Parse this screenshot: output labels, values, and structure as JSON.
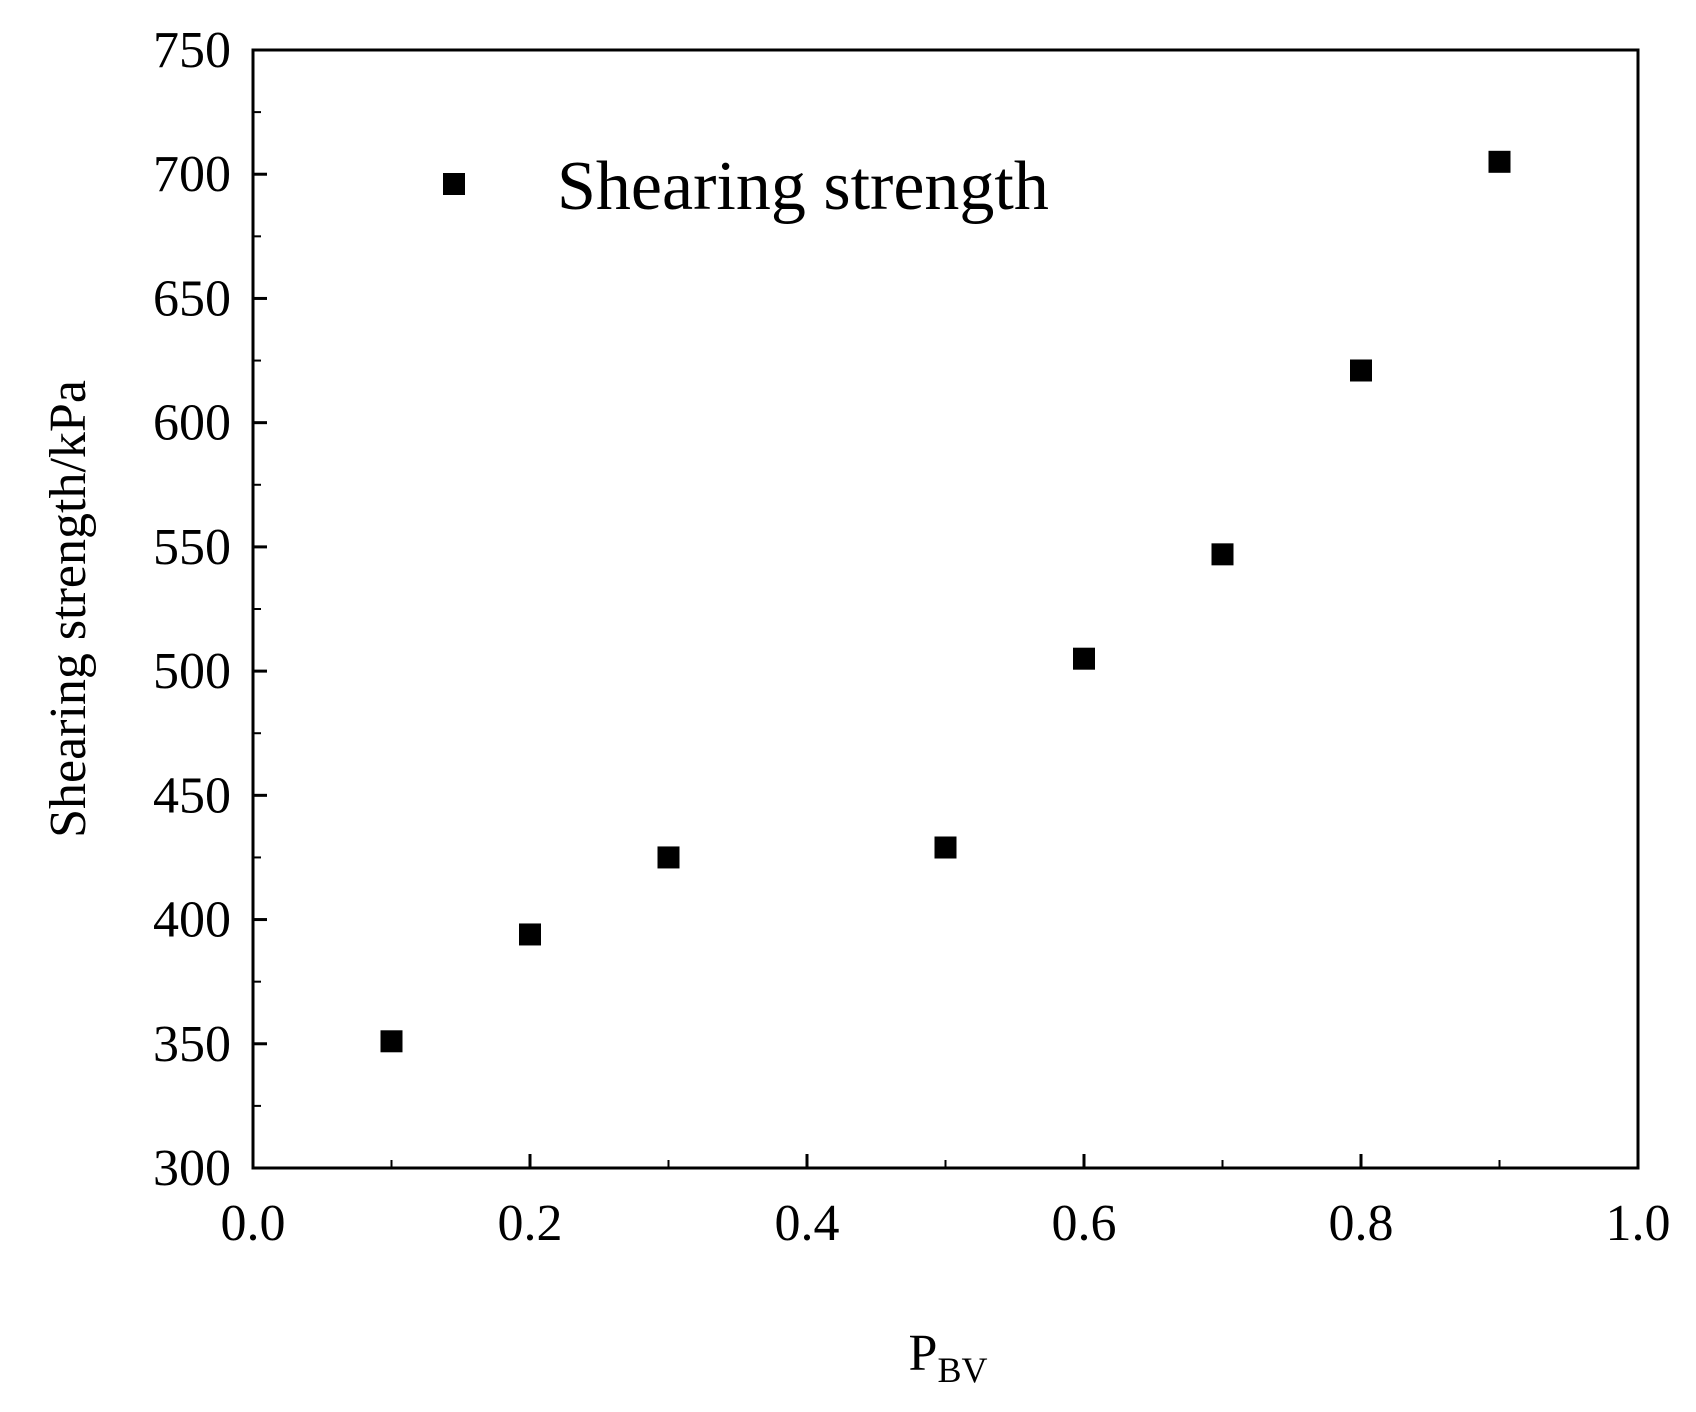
{
  "chart_data": {
    "type": "scatter",
    "xlabel": "P",
    "xlabel_subscript": "BV",
    "ylabel": "Shearing strength/kPa",
    "xlim": [
      0.0,
      1.0
    ],
    "ylim": [
      300,
      750
    ],
    "x_ticks": [
      "0.0",
      "0.2",
      "0.4",
      "0.6",
      "0.8",
      "1.0"
    ],
    "y_ticks": [
      "300",
      "350",
      "400",
      "450",
      "500",
      "550",
      "600",
      "650",
      "700",
      "750"
    ],
    "x_minor_step": 0.1,
    "y_minor_step": 25,
    "grid": false,
    "legend_position": "top-left",
    "series": [
      {
        "name": "Shearing strength",
        "marker": "square",
        "color": "#000000",
        "x": [
          0.1,
          0.2,
          0.3,
          0.5,
          0.6,
          0.7,
          0.8,
          0.9
        ],
        "y": [
          351,
          394,
          425,
          429,
          505,
          547,
          621,
          705
        ]
      }
    ]
  }
}
